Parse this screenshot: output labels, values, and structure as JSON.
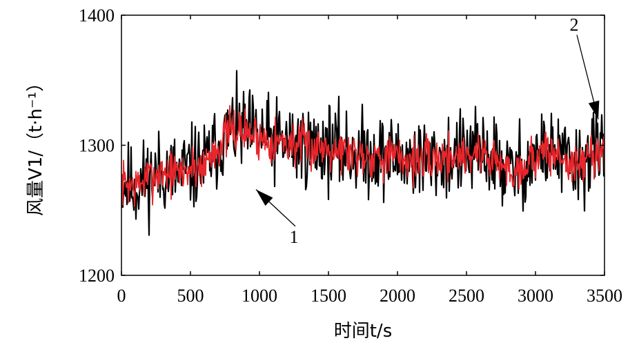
{
  "chart_data": {
    "type": "line",
    "title": "",
    "xlabel": "时间t/s",
    "ylabel": "风量V1/（t·h⁻¹）",
    "xlim": [
      0,
      3500
    ],
    "ylim": [
      1200,
      1400
    ],
    "xticks": [
      "0",
      "500",
      "1000",
      "1500",
      "2000",
      "2500",
      "3000",
      "3500"
    ],
    "yticks": [
      "1200",
      "1300",
      "1400"
    ],
    "grid": false,
    "legend": "none",
    "trend": {
      "x": [
        0,
        100,
        200,
        300,
        400,
        500,
        600,
        700,
        800,
        900,
        1000,
        1100,
        1200,
        1300,
        1400,
        1500,
        1600,
        1700,
        1800,
        1900,
        2000,
        2100,
        2200,
        2300,
        2400,
        2500,
        2600,
        2700,
        2800,
        2900,
        3000,
        3100,
        3200,
        3300,
        3400,
        3500
      ],
      "y": [
        1272,
        1268,
        1275,
        1280,
        1278,
        1282,
        1285,
        1300,
        1312,
        1310,
        1306,
        1304,
        1302,
        1300,
        1298,
        1300,
        1296,
        1294,
        1293,
        1292,
        1290,
        1289,
        1288,
        1290,
        1292,
        1293,
        1294,
        1290,
        1280,
        1283,
        1292,
        1295,
        1290,
        1282,
        1293,
        1298
      ]
    },
    "series": [
      {
        "color": "#000000",
        "amplitude": 28,
        "seed": 11
      },
      {
        "color": "#e8262b",
        "amplitude": 15,
        "seed": 7
      }
    ],
    "annotations": [
      {
        "text": "1",
        "x": 1250,
        "y": 1225,
        "arrow_to": [
          975,
          1266
        ]
      },
      {
        "text": "2",
        "x": 3280,
        "y": 1388,
        "arrow_to": [
          3455,
          1320
        ]
      }
    ]
  }
}
